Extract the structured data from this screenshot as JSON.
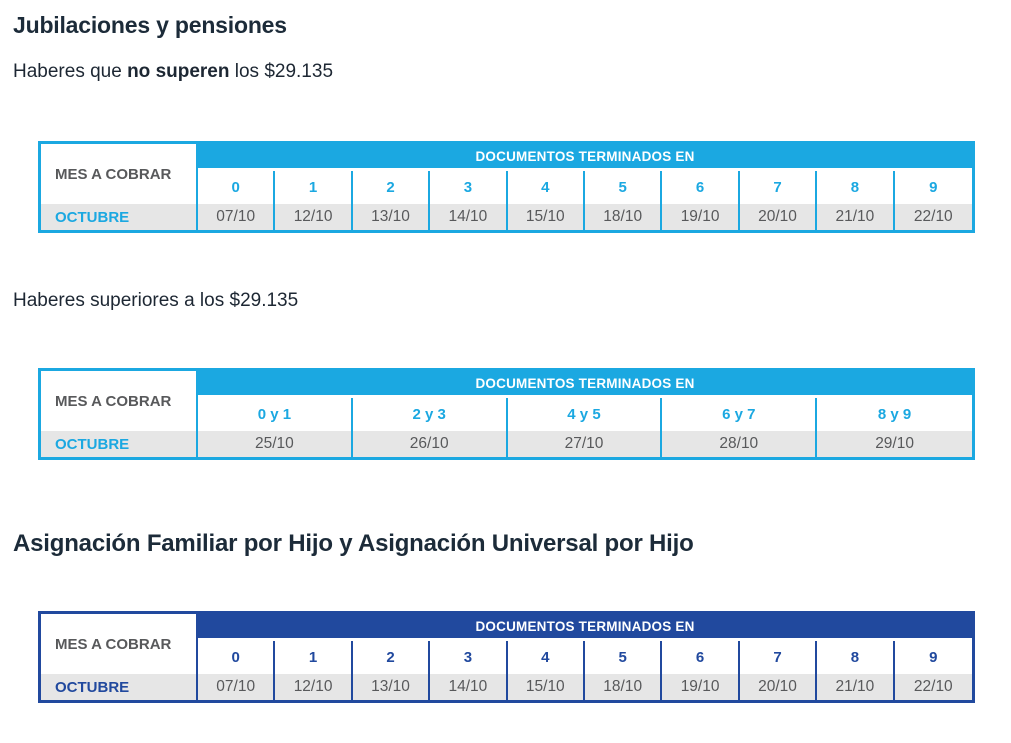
{
  "page": {
    "title": "Jubilaciones y pensiones",
    "subtitle1": {
      "pre": "Haberes que ",
      "bold": "no superen",
      "post": " los $29.135"
    },
    "subtitle2": "Haberes superiores a los $29.135",
    "section2_title": "Asignación Familiar por Hijo y Asignación Universal por Hijo"
  },
  "colors": {
    "light_blue_accent": "#1ba8e1",
    "dark_blue_accent": "#21499e",
    "row_gray": "#e6e6e6",
    "cell_text_gray": "#58595b",
    "heading_text": "#1c2b39"
  },
  "tables": [
    {
      "id": "jubilaciones-hasta-29135",
      "theme": "light-blue",
      "month_label": "MES A COBRAR",
      "docs_header": "DOCUMENTOS TERMINADOS EN",
      "month_value": "OCTUBRE",
      "columns": [
        "0",
        "1",
        "2",
        "3",
        "4",
        "5",
        "6",
        "7",
        "8",
        "9"
      ],
      "dates": [
        "07/10",
        "12/10",
        "13/10",
        "14/10",
        "15/10",
        "18/10",
        "19/10",
        "20/10",
        "21/10",
        "22/10"
      ]
    },
    {
      "id": "jubilaciones-superiores-29135",
      "theme": "light-blue",
      "month_label": "MES A COBRAR",
      "docs_header": "DOCUMENTOS TERMINADOS EN",
      "month_value": "OCTUBRE",
      "columns": [
        "0 y 1",
        "2 y 3",
        "4 y 5",
        "6 y 7",
        "8 y 9"
      ],
      "dates": [
        "25/10",
        "26/10",
        "27/10",
        "28/10",
        "29/10"
      ]
    },
    {
      "id": "asignacion-familiar-universal-hijo",
      "theme": "dark-blue",
      "month_label": "MES A COBRAR",
      "docs_header": "DOCUMENTOS TERMINADOS EN",
      "month_value": "OCTUBRE",
      "columns": [
        "0",
        "1",
        "2",
        "3",
        "4",
        "5",
        "6",
        "7",
        "8",
        "9"
      ],
      "dates": [
        "07/10",
        "12/10",
        "13/10",
        "14/10",
        "15/10",
        "18/10",
        "19/10",
        "20/10",
        "21/10",
        "22/10"
      ]
    }
  ]
}
